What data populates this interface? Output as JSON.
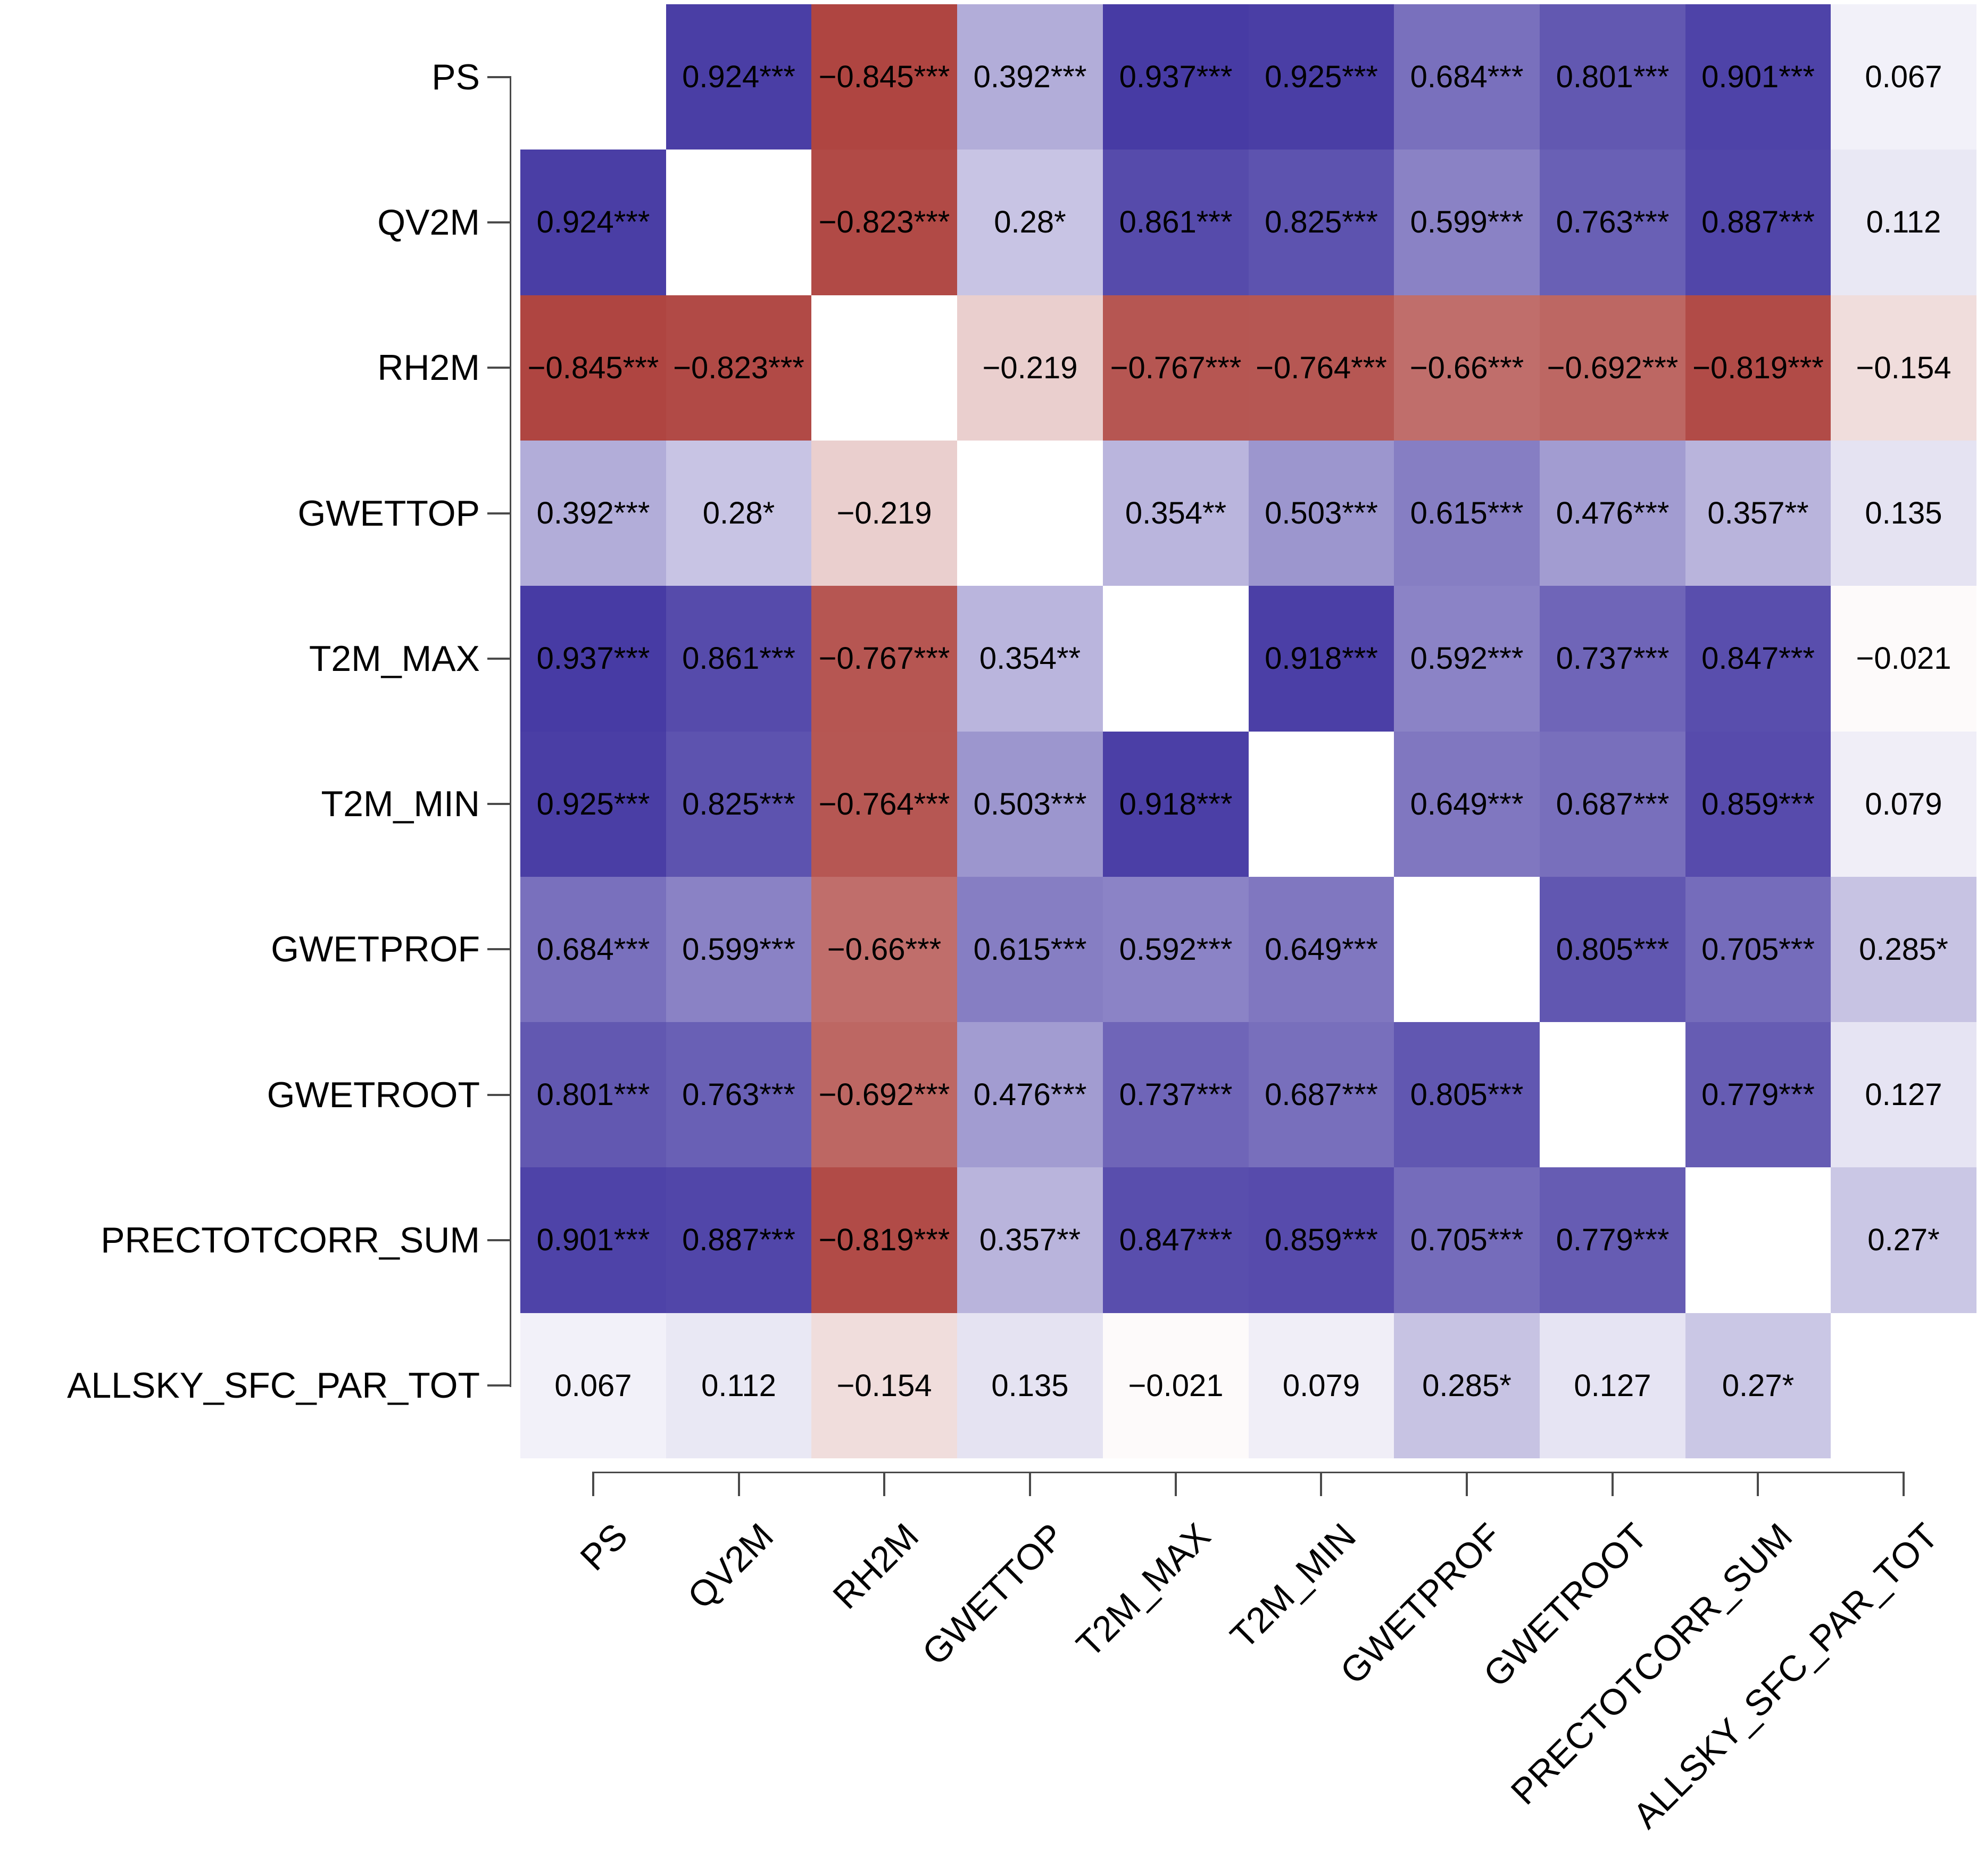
{
  "colors": {
    "background": "#FFFFFF",
    "text": "#000000",
    "axis": "#4A4A4A",
    "positive_max": "#3B2E9E",
    "negative_max": "#A0231E",
    "zero": "#FFFFFF"
  },
  "chart_data": {
    "type": "heatmap",
    "title": "",
    "xlabel": "",
    "ylabel": "",
    "value_range": [
      -1,
      1
    ],
    "grid": "off",
    "legend": "none",
    "significance_codes_shown": [
      "*",
      "**",
      "***"
    ],
    "variables": [
      "PS",
      "QV2M",
      "RH2M",
      "GWETTOP",
      "T2M_MAX",
      "T2M_MIN",
      "GWETPROF",
      "GWETROOT",
      "PRECTOTCORR_SUM",
      "ALLSKY_SFC_PAR_TOT"
    ],
    "matrix": [
      [
        null,
        {
          "v": 0.924,
          "sig": "***"
        },
        {
          "v": -0.845,
          "sig": "***"
        },
        {
          "v": 0.392,
          "sig": "***"
        },
        {
          "v": 0.937,
          "sig": "***"
        },
        {
          "v": 0.925,
          "sig": "***"
        },
        {
          "v": 0.684,
          "sig": "***"
        },
        {
          "v": 0.801,
          "sig": "***"
        },
        {
          "v": 0.901,
          "sig": "***"
        },
        {
          "v": 0.067,
          "sig": ""
        }
      ],
      [
        {
          "v": 0.924,
          "sig": "***"
        },
        null,
        {
          "v": -0.823,
          "sig": "***"
        },
        {
          "v": 0.28,
          "sig": "*"
        },
        {
          "v": 0.861,
          "sig": "***"
        },
        {
          "v": 0.825,
          "sig": "***"
        },
        {
          "v": 0.599,
          "sig": "***"
        },
        {
          "v": 0.763,
          "sig": "***"
        },
        {
          "v": 0.887,
          "sig": "***"
        },
        {
          "v": 0.112,
          "sig": ""
        }
      ],
      [
        {
          "v": -0.845,
          "sig": "***"
        },
        {
          "v": -0.823,
          "sig": "***"
        },
        null,
        {
          "v": -0.219,
          "sig": ""
        },
        {
          "v": -0.767,
          "sig": "***"
        },
        {
          "v": -0.764,
          "sig": "***"
        },
        {
          "v": -0.66,
          "sig": "***"
        },
        {
          "v": -0.692,
          "sig": "***"
        },
        {
          "v": -0.819,
          "sig": "***"
        },
        {
          "v": -0.154,
          "sig": ""
        }
      ],
      [
        {
          "v": 0.392,
          "sig": "***"
        },
        {
          "v": 0.28,
          "sig": "*"
        },
        {
          "v": -0.219,
          "sig": ""
        },
        null,
        {
          "v": 0.354,
          "sig": "**"
        },
        {
          "v": 0.503,
          "sig": "***"
        },
        {
          "v": 0.615,
          "sig": "***"
        },
        {
          "v": 0.476,
          "sig": "***"
        },
        {
          "v": 0.357,
          "sig": "**"
        },
        {
          "v": 0.135,
          "sig": ""
        }
      ],
      [
        {
          "v": 0.937,
          "sig": "***"
        },
        {
          "v": 0.861,
          "sig": "***"
        },
        {
          "v": -0.767,
          "sig": "***"
        },
        {
          "v": 0.354,
          "sig": "**"
        },
        null,
        {
          "v": 0.918,
          "sig": "***"
        },
        {
          "v": 0.592,
          "sig": "***"
        },
        {
          "v": 0.737,
          "sig": "***"
        },
        {
          "v": 0.847,
          "sig": "***"
        },
        {
          "v": -0.021,
          "sig": ""
        }
      ],
      [
        {
          "v": 0.925,
          "sig": "***"
        },
        {
          "v": 0.825,
          "sig": "***"
        },
        {
          "v": -0.764,
          "sig": "***"
        },
        {
          "v": 0.503,
          "sig": "***"
        },
        {
          "v": 0.918,
          "sig": "***"
        },
        null,
        {
          "v": 0.649,
          "sig": "***"
        },
        {
          "v": 0.687,
          "sig": "***"
        },
        {
          "v": 0.859,
          "sig": "***"
        },
        {
          "v": 0.079,
          "sig": ""
        }
      ],
      [
        {
          "v": 0.684,
          "sig": "***"
        },
        {
          "v": 0.599,
          "sig": "***"
        },
        {
          "v": -0.66,
          "sig": "***"
        },
        {
          "v": 0.615,
          "sig": "***"
        },
        {
          "v": 0.592,
          "sig": "***"
        },
        {
          "v": 0.649,
          "sig": "***"
        },
        null,
        {
          "v": 0.805,
          "sig": "***"
        },
        {
          "v": 0.705,
          "sig": "***"
        },
        {
          "v": 0.285,
          "sig": "*"
        }
      ],
      [
        {
          "v": 0.801,
          "sig": "***"
        },
        {
          "v": 0.763,
          "sig": "***"
        },
        {
          "v": -0.692,
          "sig": "***"
        },
        {
          "v": 0.476,
          "sig": "***"
        },
        {
          "v": 0.737,
          "sig": "***"
        },
        {
          "v": 0.687,
          "sig": "***"
        },
        {
          "v": 0.805,
          "sig": "***"
        },
        null,
        {
          "v": 0.779,
          "sig": "***"
        },
        {
          "v": 0.127,
          "sig": ""
        }
      ],
      [
        {
          "v": 0.901,
          "sig": "***"
        },
        {
          "v": 0.887,
          "sig": "***"
        },
        {
          "v": -0.819,
          "sig": "***"
        },
        {
          "v": 0.357,
          "sig": "**"
        },
        {
          "v": 0.847,
          "sig": "***"
        },
        {
          "v": 0.859,
          "sig": "***"
        },
        {
          "v": 0.705,
          "sig": "***"
        },
        {
          "v": 0.779,
          "sig": "***"
        },
        null,
        {
          "v": 0.27,
          "sig": "*"
        }
      ],
      [
        {
          "v": 0.067,
          "sig": ""
        },
        {
          "v": 0.112,
          "sig": ""
        },
        {
          "v": -0.154,
          "sig": ""
        },
        {
          "v": 0.135,
          "sig": ""
        },
        {
          "v": -0.021,
          "sig": ""
        },
        {
          "v": 0.079,
          "sig": ""
        },
        {
          "v": 0.285,
          "sig": "*"
        },
        {
          "v": 0.127,
          "sig": ""
        },
        {
          "v": 0.27,
          "sig": "*"
        },
        null
      ]
    ]
  }
}
